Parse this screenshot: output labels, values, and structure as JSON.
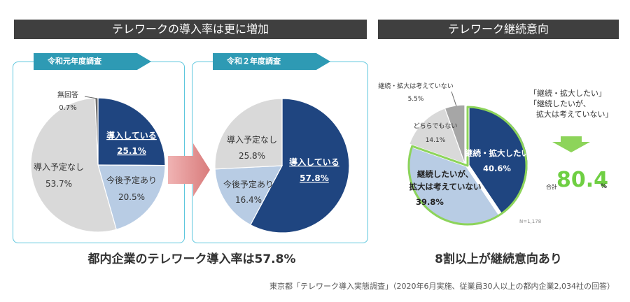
{
  "banners": {
    "left": "テレワークの導入率は更に増加",
    "right": "テレワーク継続意向"
  },
  "tabs": {
    "survey1": "令和元年度調査",
    "survey2": "令和２年度調査"
  },
  "headlines": {
    "left": "都内企業のテレワーク導入率は57.8%",
    "right": "8割以上が継続意向あり"
  },
  "source": "東京都「テレワーク導入実態調査」（2020年6月実施、従業員30人以上の都内企業2,034社の回答）",
  "callout": {
    "lines": [
      "「継続・拡大したい」",
      "「継続したいが、",
      "拡大は考えていない」"
    ],
    "total_label": "合計",
    "total_value": "80.4",
    "total_unit": "%"
  },
  "n_label": "N=1,178",
  "colors": {
    "navy": "#1f4580",
    "light_blue": "#b8cce4",
    "light_gray": "#d9d9d9",
    "gray": "#a6a6a6",
    "green": "#8dd45a",
    "teal": "#2e9ab4",
    "arrow_pink": "#e39a9a"
  },
  "chart_data": [
    {
      "type": "pie",
      "title": "令和元年度調査",
      "slices": [
        {
          "label": "導入している",
          "value": 25.1,
          "value_label": "25.1%",
          "color": "#1f4580"
        },
        {
          "label": "今後予定あり",
          "value": 20.5,
          "value_label": "20.5%",
          "color": "#b8cce4"
        },
        {
          "label": "導入予定なし",
          "value": 53.7,
          "value_label": "53.7%",
          "color": "#d9d9d9"
        },
        {
          "label": "無回答",
          "value": 0.7,
          "value_label": "0.7%",
          "color": "#6b6b6b"
        }
      ]
    },
    {
      "type": "pie",
      "title": "令和２年度調査",
      "slices": [
        {
          "label": "導入している",
          "value": 57.8,
          "value_label": "57.8%",
          "color": "#1f4580"
        },
        {
          "label": "今後予定あり",
          "value": 16.4,
          "value_label": "16.4%",
          "color": "#b8cce4"
        },
        {
          "label": "導入予定なし",
          "value": 25.8,
          "value_label": "25.8%",
          "color": "#d9d9d9"
        }
      ]
    },
    {
      "type": "pie",
      "title": "テレワーク継続意向",
      "slices": [
        {
          "label": "継続・拡大したい",
          "value": 40.6,
          "value_label": "40.6%",
          "color": "#1f4580"
        },
        {
          "label": "継続したいが、拡大は考えていない",
          "value": 39.8,
          "value_label": "39.8%",
          "color": "#b8cce4"
        },
        {
          "label": "どちらでもない",
          "value": 14.1,
          "value_label": "14.1%",
          "color": "#d9d9d9"
        },
        {
          "label": "継続・拡大は考えていない",
          "value": 5.5,
          "value_label": "5.5%",
          "color": "#a6a6a6"
        }
      ]
    }
  ]
}
